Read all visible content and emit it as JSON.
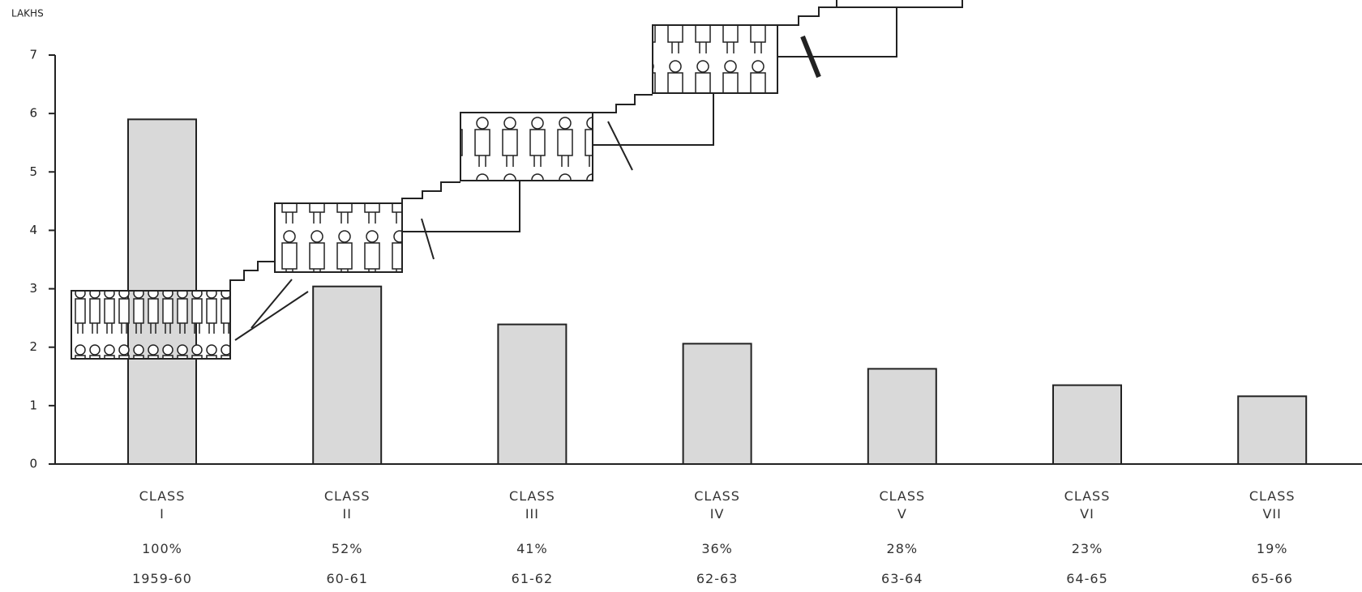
{
  "chart_data": {
    "type": "bar",
    "y_label": "LAKHS",
    "categories": [
      "CLASS\nI",
      "CLASS\nII",
      "CLASS\nIII",
      "CLASS\nIV",
      "CLASS\nV",
      "CLASS\nVI",
      "CLASS\nVII"
    ],
    "share_labels": [
      "100%",
      "52%",
      "41%",
      "36%",
      "28%",
      "23%",
      "19%"
    ],
    "years": [
      "1959-60",
      "60-61",
      "61-62",
      "62-63",
      "63-64",
      "64-65",
      "65-66"
    ],
    "values": [
      5.9,
      3.04,
      2.39,
      2.06,
      1.63,
      1.35,
      1.16
    ],
    "color": "#d9d9d9",
    "ylim": [
      0,
      7
    ],
    "yticks": [
      0,
      1,
      2,
      3,
      4,
      5,
      6,
      7
    ],
    "grid": false
  }
}
